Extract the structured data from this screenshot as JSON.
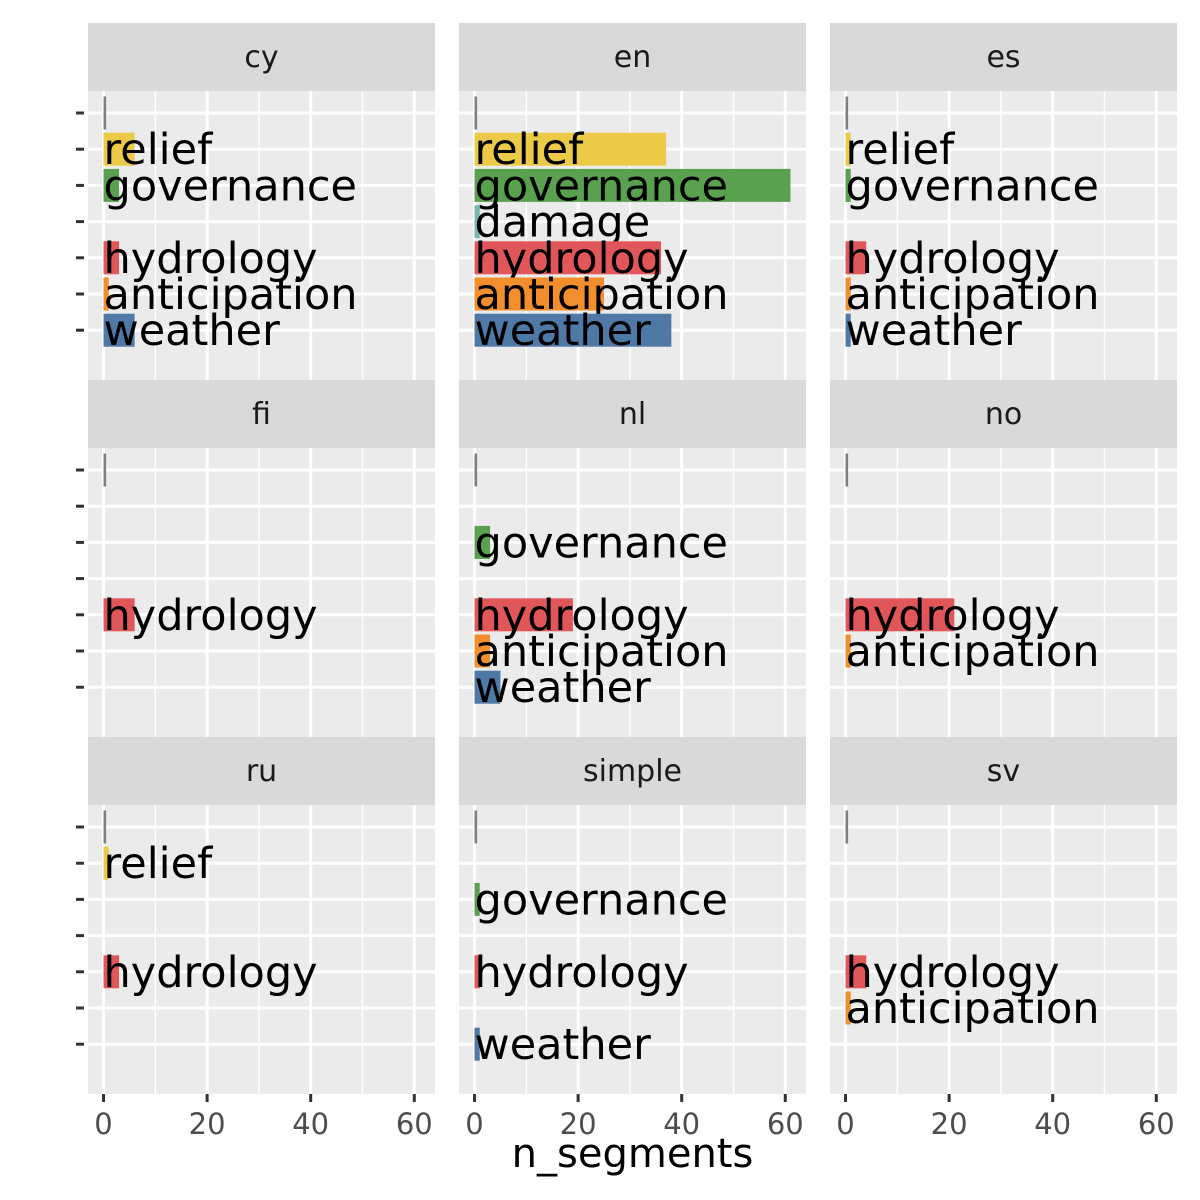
{
  "chart_data": {
    "type": "bar",
    "orientation": "horizontal",
    "facets": [
      "cy",
      "en",
      "es",
      "fi",
      "nl",
      "no",
      "ru",
      "simple",
      "sv"
    ],
    "categories": [
      "",
      "relief",
      "governance",
      "damage",
      "hydrology",
      "anticipation",
      "weather"
    ],
    "category_colors": {
      "": "#7f7f7f",
      "relief": "#edc948",
      "governance": "#59a14f",
      "damage": "#76b7b2",
      "hydrology": "#e15759",
      "anticipation": "#f28e2b",
      "weather": "#4e79a7"
    },
    "panels": [
      {
        "facet": "cy",
        "bars": [
          {
            "category": "",
            "value": 0.5
          },
          {
            "category": "relief",
            "value": 6
          },
          {
            "category": "governance",
            "value": 3
          },
          {
            "category": "hydrology",
            "value": 3
          },
          {
            "category": "anticipation",
            "value": 1
          },
          {
            "category": "weather",
            "value": 6
          }
        ]
      },
      {
        "facet": "en",
        "bars": [
          {
            "category": "",
            "value": 0.5
          },
          {
            "category": "relief",
            "value": 37
          },
          {
            "category": "governance",
            "value": 61
          },
          {
            "category": "damage",
            "value": 1
          },
          {
            "category": "hydrology",
            "value": 36
          },
          {
            "category": "anticipation",
            "value": 25
          },
          {
            "category": "weather",
            "value": 38
          }
        ]
      },
      {
        "facet": "es",
        "bars": [
          {
            "category": "",
            "value": 0.5
          },
          {
            "category": "relief",
            "value": 1
          },
          {
            "category": "governance",
            "value": 1
          },
          {
            "category": "hydrology",
            "value": 4
          },
          {
            "category": "anticipation",
            "value": 1
          },
          {
            "category": "weather",
            "value": 1
          }
        ]
      },
      {
        "facet": "fi",
        "bars": [
          {
            "category": "",
            "value": 0.5
          },
          {
            "category": "hydrology",
            "value": 6
          }
        ]
      },
      {
        "facet": "nl",
        "bars": [
          {
            "category": "",
            "value": 0.5
          },
          {
            "category": "governance",
            "value": 3
          },
          {
            "category": "hydrology",
            "value": 19
          },
          {
            "category": "anticipation",
            "value": 3
          },
          {
            "category": "weather",
            "value": 5
          }
        ]
      },
      {
        "facet": "no",
        "bars": [
          {
            "category": "",
            "value": 0.5
          },
          {
            "category": "hydrology",
            "value": 21
          },
          {
            "category": "anticipation",
            "value": 1
          }
        ]
      },
      {
        "facet": "ru",
        "bars": [
          {
            "category": "",
            "value": 0.5
          },
          {
            "category": "relief",
            "value": 1
          },
          {
            "category": "hydrology",
            "value": 3
          }
        ]
      },
      {
        "facet": "simple",
        "bars": [
          {
            "category": "",
            "value": 0.5
          },
          {
            "category": "governance",
            "value": 1
          },
          {
            "category": "hydrology",
            "value": 1
          },
          {
            "category": "weather",
            "value": 1
          }
        ]
      },
      {
        "facet": "sv",
        "bars": [
          {
            "category": "",
            "value": 0.5
          },
          {
            "category": "hydrology",
            "value": 4
          },
          {
            "category": "anticipation",
            "value": 1
          }
        ]
      }
    ],
    "x_ticks": [
      0,
      20,
      40,
      60
    ],
    "xlim": [
      -3,
      64
    ],
    "xlabel": "n_segments",
    "ylabel": "",
    "grid": true,
    "legend": "none",
    "colors": {
      "panel_background": "#ebebeb",
      "strip_background": "#d9d9d9",
      "grid": "#ffffff"
    }
  }
}
